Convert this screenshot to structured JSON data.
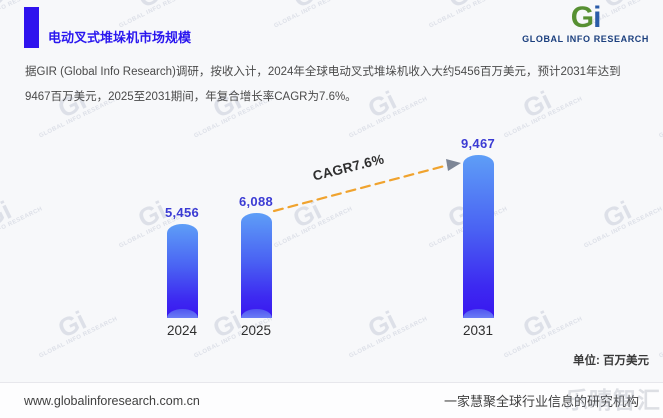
{
  "header": {
    "title": "电动叉式堆垛机市场规模",
    "logo": {
      "mark_g": "G",
      "mark_i": "i",
      "text": "GLOBAL INFO RESEARCH"
    }
  },
  "description": "据GIR (Global Info Research)调研，按收入计，2024年全球电动叉式堆垛机收入大约5456百万美元，预计2031年达到9467百万美元，2025至2031期间，年复合增长率CAGR为7.6%。",
  "chart_data": {
    "type": "bar",
    "categories": [
      "2024",
      "2025",
      "2031"
    ],
    "values": [
      5456,
      6088,
      9467
    ],
    "value_labels": [
      "5,456",
      "6,088",
      "9,467"
    ],
    "series_name": "全球电动叉式堆垛机收入",
    "annotation": "CAGR7.6%",
    "unit_label": "单位: 百万美元",
    "ylim": [
      0,
      9467
    ],
    "grid": false,
    "legend": false,
    "bar_color_top": "#5e9ef7",
    "bar_color_bottom": "#3916f0",
    "value_label_color": "#3b3bd4",
    "trend_line_color": "#f0a32e"
  },
  "watermark": {
    "mark": "Gi",
    "text": "GLOBAL INFO RESEARCH"
  },
  "footer": {
    "website": "www.globalinforesearch.com.cn",
    "slogan": "一家慧聚全球行业信息的研究机构",
    "overlay_watermark": "乐晴智汇"
  },
  "colors": {
    "accent_blue": "#2f13ee",
    "title_blue": "#2a17ef",
    "logo_green": "#579032",
    "logo_blue": "#2a5ba8",
    "background": "#f7f8fa"
  }
}
